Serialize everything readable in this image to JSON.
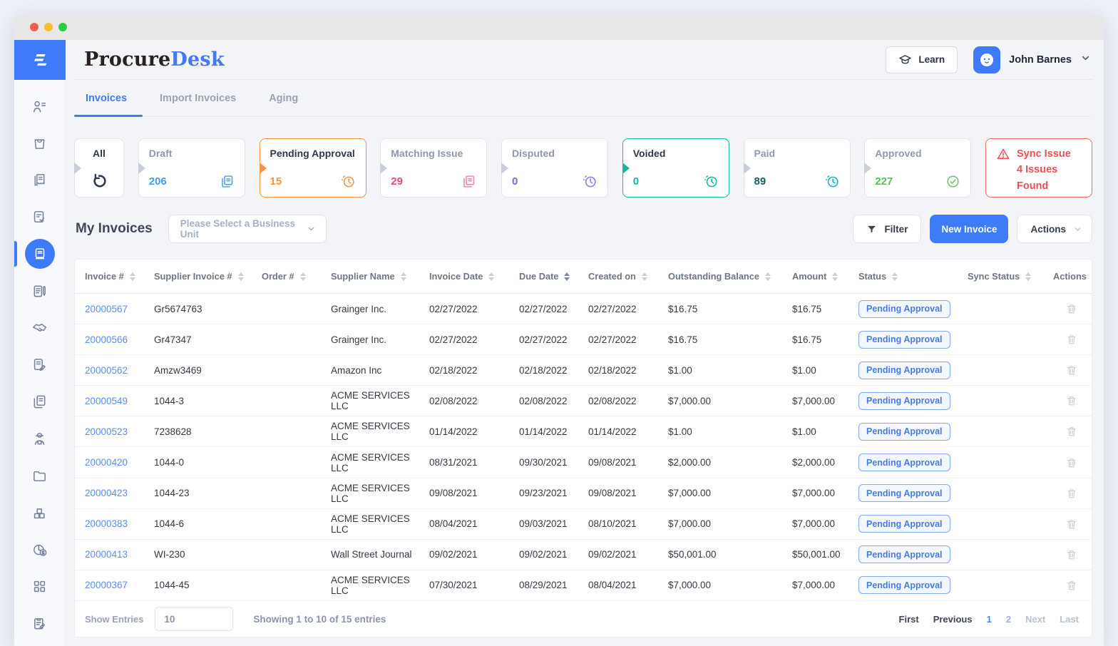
{
  "brand": {
    "logo_part1": "Procure",
    "logo_part2": "Desk"
  },
  "header": {
    "learn_label": "Learn",
    "user_name": "John Barnes"
  },
  "tabs": [
    {
      "label": "Invoices",
      "active": true
    },
    {
      "label": "Import Invoices",
      "active": false
    },
    {
      "label": "Aging",
      "active": false
    }
  ],
  "status_cards": [
    {
      "label": "All",
      "variant": "all",
      "count": null,
      "icon": "refresh-icon",
      "icon_shape": "refresh",
      "icon_color": "#2e3a4d",
      "arrow_color": "#c9cfda",
      "label_dark": true
    },
    {
      "label": "Draft",
      "count": "206",
      "count_color": "#38a1f6",
      "icon": "copy-pages-icon",
      "icon_shape": "pages",
      "icon_color": "#4b9bf5",
      "arrow_color": "#c9cfda",
      "label_dark": false
    },
    {
      "label": "Pending Approval",
      "count": "15",
      "count_color": "#f5953d",
      "icon": "clock-icon",
      "icon_shape": "clock",
      "icon_color": "#f5953d",
      "arrow_color": "#f5953d",
      "border_color": "#f0923e",
      "label_dark": true
    },
    {
      "label": "Matching Issue",
      "count": "29",
      "count_color": "#f04776",
      "icon": "copy-pages-icon",
      "icon_shape": "pages",
      "icon_color": "#f37d9b",
      "arrow_color": "#c9cfda",
      "label_dark": false
    },
    {
      "label": "Disputed",
      "count": "0",
      "count_color": "#7b68ee",
      "icon": "clock-icon",
      "icon_shape": "clock",
      "icon_color": "#8a7bf0",
      "arrow_color": "#c9cfda",
      "label_dark": false
    },
    {
      "label": "Voided",
      "count": "0",
      "count_color": "#12b9a0",
      "icon": "clock-icon",
      "icon_shape": "clock",
      "icon_color": "#12b9a0",
      "arrow_color": "#12b9a0",
      "border_color": "#12b9a0",
      "label_dark": true
    },
    {
      "label": "Paid",
      "count": "89",
      "count_color": "#175e66",
      "icon": "clock-icon",
      "icon_shape": "clock",
      "icon_color": "#16b3be",
      "arrow_color": "#c9cfda",
      "label_dark": false
    },
    {
      "label": "Approved",
      "count": "227",
      "count_color": "#56bf5c",
      "icon": "check-circle-icon",
      "icon_shape": "check",
      "icon_color": "#6cc671",
      "arrow_color": "#c9cfda",
      "label_dark": false
    }
  ],
  "sync_card": {
    "icon": "warning-icon",
    "title": "Sync Issue",
    "subtitle": "4 Issues Found"
  },
  "section": {
    "title": "My Invoices",
    "business_unit_placeholder": "Please Select a Business Unit",
    "filter_label": "Filter",
    "new_invoice_label": "New Invoice",
    "actions_label": "Actions"
  },
  "table": {
    "columns": [
      {
        "label": "Invoice #",
        "sortable": true
      },
      {
        "label": "Supplier Invoice #",
        "sortable": true
      },
      {
        "label": "Order #",
        "sortable": true
      },
      {
        "label": "Supplier Name",
        "sortable": true
      },
      {
        "label": "Invoice Date",
        "sortable": true
      },
      {
        "label": "Due Date",
        "sortable": true,
        "sort_active": true
      },
      {
        "label": "Created on",
        "sortable": true
      },
      {
        "label": "Outstanding Balance",
        "sortable": true
      },
      {
        "label": "Amount",
        "sortable": true
      },
      {
        "label": "Status",
        "sortable": true
      },
      {
        "label": "Sync Status",
        "sortable": true
      },
      {
        "label": "Actions",
        "sortable": false
      }
    ],
    "rows": [
      {
        "invoice_no": "20000567",
        "supplier_invoice_no": "Gr5674763",
        "order_no": "",
        "supplier_name": "Grainger Inc.",
        "invoice_date": "02/27/2022",
        "due_date": "02/27/2022",
        "created_on": "02/27/2022",
        "outstanding_balance": "$16.75",
        "amount": "$16.75",
        "status": "Pending Approval",
        "sync_status": ""
      },
      {
        "invoice_no": "20000566",
        "supplier_invoice_no": "Gr47347",
        "order_no": "",
        "supplier_name": "Grainger Inc.",
        "invoice_date": "02/27/2022",
        "due_date": "02/27/2022",
        "created_on": "02/27/2022",
        "outstanding_balance": "$16.75",
        "amount": "$16.75",
        "status": "Pending Approval",
        "sync_status": ""
      },
      {
        "invoice_no": "20000562",
        "supplier_invoice_no": "Amzw3469",
        "order_no": "",
        "supplier_name": "Amazon Inc",
        "invoice_date": "02/18/2022",
        "due_date": "02/18/2022",
        "created_on": "02/18/2022",
        "outstanding_balance": "$1.00",
        "amount": "$1.00",
        "status": "Pending Approval",
        "sync_status": ""
      },
      {
        "invoice_no": "20000549",
        "supplier_invoice_no": "1044-3",
        "order_no": "",
        "supplier_name": "ACME SERVICES LLC",
        "invoice_date": "02/08/2022",
        "due_date": "02/08/2022",
        "created_on": "02/08/2022",
        "outstanding_balance": "$7,000.00",
        "amount": "$7,000.00",
        "status": "Pending Approval",
        "sync_status": ""
      },
      {
        "invoice_no": "20000523",
        "supplier_invoice_no": "7238628",
        "order_no": "",
        "supplier_name": "ACME SERVICES LLC",
        "invoice_date": "01/14/2022",
        "due_date": "01/14/2022",
        "created_on": "01/14/2022",
        "outstanding_balance": "$1.00",
        "amount": "$1.00",
        "status": "Pending Approval",
        "sync_status": ""
      },
      {
        "invoice_no": "20000420",
        "supplier_invoice_no": "1044-0",
        "order_no": "",
        "supplier_name": "ACME SERVICES LLC",
        "invoice_date": "08/31/2021",
        "due_date": "09/30/2021",
        "created_on": "09/08/2021",
        "outstanding_balance": "$2,000.00",
        "amount": "$2,000.00",
        "status": "Pending Approval",
        "sync_status": ""
      },
      {
        "invoice_no": "20000423",
        "supplier_invoice_no": "1044-23",
        "order_no": "",
        "supplier_name": "ACME SERVICES LLC",
        "invoice_date": "09/08/2021",
        "due_date": "09/23/2021",
        "created_on": "09/08/2021",
        "outstanding_balance": "$7,000.00",
        "amount": "$7,000.00",
        "status": "Pending Approval",
        "sync_status": ""
      },
      {
        "invoice_no": "20000383",
        "supplier_invoice_no": "1044-6",
        "order_no": "",
        "supplier_name": "ACME SERVICES LLC",
        "invoice_date": "08/04/2021",
        "due_date": "09/03/2021",
        "created_on": "08/10/2021",
        "outstanding_balance": "$7,000.00",
        "amount": "$7,000.00",
        "status": "Pending Approval",
        "sync_status": ""
      },
      {
        "invoice_no": "20000413",
        "supplier_invoice_no": "WI-230",
        "order_no": "",
        "supplier_name": "Wall Street Journal",
        "invoice_date": "09/02/2021",
        "due_date": "09/02/2021",
        "created_on": "09/02/2021",
        "outstanding_balance": "$50,001.00",
        "amount": "$50,001.00",
        "status": "Pending Approval",
        "sync_status": ""
      },
      {
        "invoice_no": "20000367",
        "supplier_invoice_no": "1044-45",
        "order_no": "",
        "supplier_name": "ACME SERVICES LLC",
        "invoice_date": "07/30/2021",
        "due_date": "08/29/2021",
        "created_on": "08/04/2021",
        "outstanding_balance": "$7,000.00",
        "amount": "$7,000.00",
        "status": "Pending Approval",
        "sync_status": ""
      }
    ]
  },
  "table_footer": {
    "show_entries_label": "Show Entries",
    "show_entries_value": "10",
    "summary": "Showing 1 to 10 of 15 entries"
  },
  "pagination": {
    "items": [
      {
        "label": "First",
        "state": "normal"
      },
      {
        "label": "Previous",
        "state": "normal"
      },
      {
        "label": "1",
        "state": "active"
      },
      {
        "label": "2",
        "state": "muted2"
      },
      {
        "label": "Next",
        "state": "muted"
      },
      {
        "label": "Last",
        "state": "muted"
      }
    ]
  },
  "sidebar": {
    "active_index": 4,
    "icons": [
      "user-list-icon",
      "shopping-bag-icon",
      "receipt-icon",
      "document-check-icon",
      "invoice-icon",
      "notepad-pen-icon",
      "handshake-icon",
      "document-edit-icon",
      "copy-documents-icon",
      "delivery-worker-icon",
      "folder-icon",
      "boxes-icon",
      "pie-chart-dollar-icon",
      "grid-icon",
      "clipboard-pen-icon"
    ]
  },
  "colors": {
    "accent_blue": "#3d7bf7",
    "orange": "#f0923e",
    "pink": "#f04776",
    "purple": "#7b68ee",
    "teal": "#12b9a0",
    "green": "#56bf5c",
    "red": "#f04f4f",
    "link_blue": "#5b8df2"
  }
}
